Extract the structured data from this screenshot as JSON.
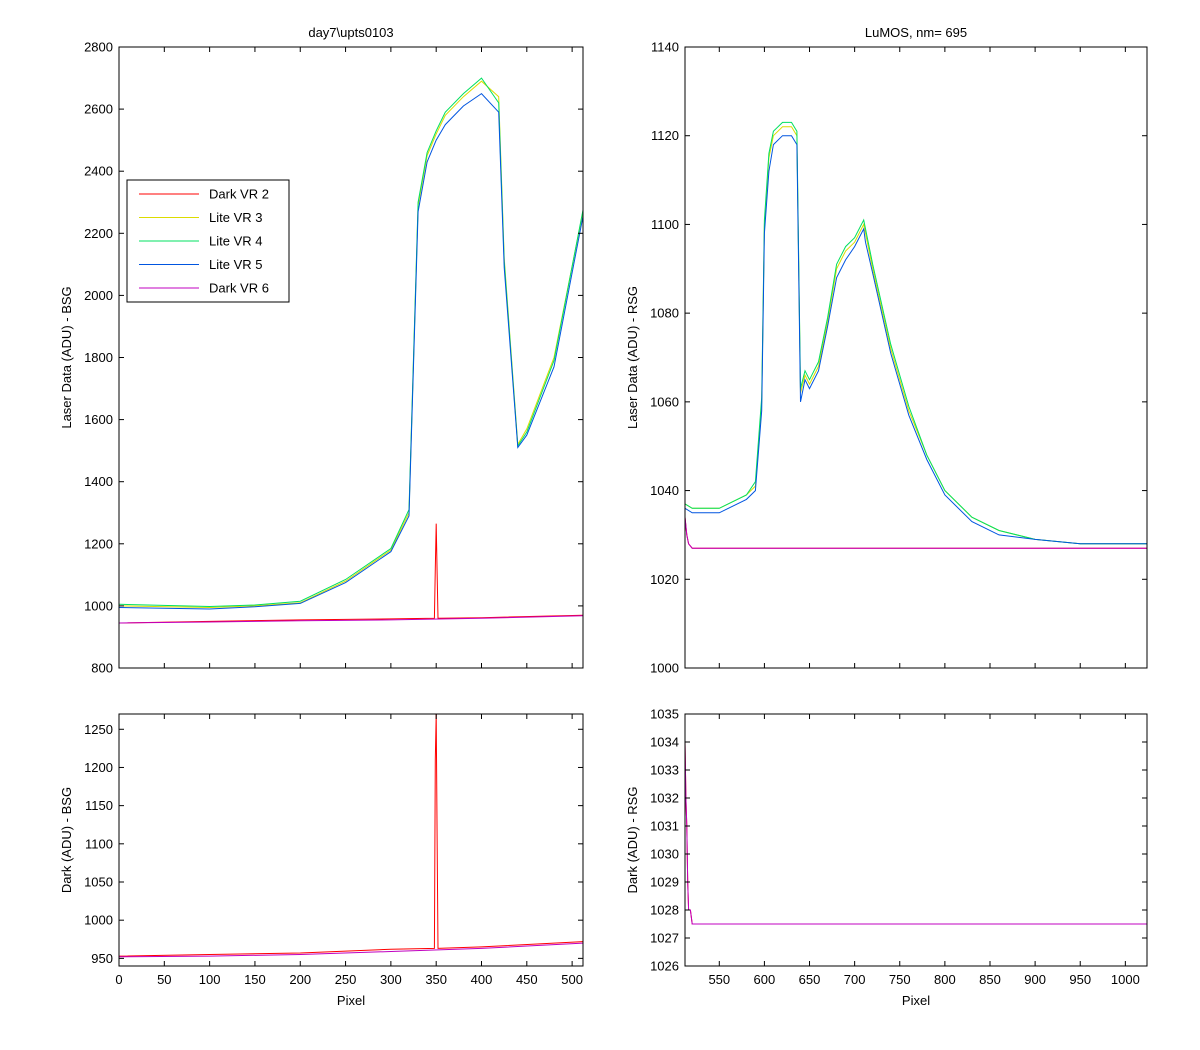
{
  "chart_data": [
    {
      "id": "bsg_laser",
      "type": "line",
      "title": "day7\\upts0103",
      "xlabel": "",
      "ylabel": "Laser Data (ADU) - BSG",
      "xlim": [
        0,
        512
      ],
      "ylim": [
        800,
        2800
      ],
      "xticks": [
        0,
        50,
        100,
        150,
        200,
        250,
        300,
        350,
        400,
        450,
        500
      ],
      "xtick_labels_shown": false,
      "yticks": [
        800,
        1000,
        1200,
        1400,
        1600,
        1800,
        2000,
        2200,
        2400,
        2600,
        2800
      ],
      "grid": false,
      "legend": "upper-left",
      "series": [
        {
          "name": "Dark VR 2",
          "color": "#ff0000",
          "x": [
            0,
            100,
            200,
            300,
            348,
            349,
            350,
            351,
            352,
            400,
            512
          ],
          "y": [
            945,
            950,
            955,
            958,
            960,
            1120,
            1265,
            1110,
            960,
            962,
            970
          ]
        },
        {
          "name": "Lite VR 3",
          "color": "#dcdc00",
          "x": [
            0,
            100,
            150,
            200,
            250,
            300,
            320,
            330,
            340,
            350,
            360,
            380,
            400,
            419,
            425,
            440,
            450,
            480,
            512
          ],
          "y": [
            1000,
            995,
            1000,
            1010,
            1080,
            1180,
            1300,
            2290,
            2450,
            2520,
            2580,
            2640,
            2690,
            2640,
            2120,
            1520,
            1570,
            1800,
            2270
          ]
        },
        {
          "name": "Lite VR 4",
          "color": "#00e060",
          "x": [
            0,
            100,
            150,
            200,
            250,
            300,
            320,
            330,
            340,
            350,
            360,
            380,
            400,
            419,
            425,
            440,
            450,
            480,
            512
          ],
          "y": [
            1005,
            998,
            1003,
            1015,
            1085,
            1185,
            1310,
            2300,
            2460,
            2530,
            2590,
            2650,
            2700,
            2620,
            2110,
            1515,
            1560,
            1790,
            2275
          ]
        },
        {
          "name": "Lite VR 5",
          "color": "#0055e0",
          "x": [
            0,
            100,
            150,
            200,
            250,
            300,
            320,
            330,
            340,
            350,
            360,
            380,
            400,
            419,
            425,
            440,
            450,
            480,
            512
          ],
          "y": [
            995,
            990,
            997,
            1008,
            1075,
            1175,
            1290,
            2270,
            2430,
            2500,
            2550,
            2610,
            2650,
            2590,
            2090,
            1510,
            1550,
            1770,
            2255
          ]
        },
        {
          "name": "Dark VR 6",
          "color": "#c000c0",
          "x": [
            0,
            100,
            200,
            300,
            400,
            512
          ],
          "y": [
            945,
            948,
            952,
            955,
            960,
            968
          ]
        }
      ]
    },
    {
      "id": "rsg_laser",
      "type": "line",
      "title": "LuMOS, nm= 695",
      "xlabel": "",
      "ylabel": "Laser Data (ADU) - RSG",
      "xlim": [
        512,
        1024
      ],
      "ylim": [
        1000,
        1140
      ],
      "xticks": [
        550,
        600,
        650,
        700,
        750,
        800,
        850,
        900,
        950,
        1000
      ],
      "xtick_labels_shown": false,
      "yticks": [
        1000,
        1020,
        1040,
        1060,
        1080,
        1100,
        1120,
        1140
      ],
      "grid": false,
      "series": [
        {
          "name": "Lite VR 3",
          "color": "#dcdc00",
          "x": [
            512,
            520,
            550,
            580,
            590,
            597,
            600,
            605,
            610,
            620,
            630,
            636,
            640,
            645,
            650,
            660,
            670,
            680,
            690,
            700,
            710,
            712,
            720,
            740,
            760,
            780,
            800,
            830,
            860,
            900,
            950,
            1000,
            1024
          ],
          "y": [
            1037,
            1036,
            1036,
            1039,
            1041,
            1060,
            1100,
            1115,
            1120,
            1122,
            1122,
            1120,
            1062,
            1066,
            1064,
            1068,
            1078,
            1090,
            1094,
            1096,
            1100,
            1098,
            1090,
            1072,
            1058,
            1048,
            1040,
            1034,
            1031,
            1029,
            1028,
            1028,
            1028
          ]
        },
        {
          "name": "Lite VR 4",
          "color": "#00e060",
          "x": [
            512,
            520,
            550,
            580,
            590,
            597,
            600,
            605,
            610,
            620,
            630,
            636,
            640,
            645,
            650,
            660,
            670,
            680,
            690,
            700,
            710,
            712,
            720,
            740,
            760,
            780,
            800,
            830,
            860,
            900,
            950,
            1000,
            1024
          ],
          "y": [
            1037,
            1036,
            1036,
            1039,
            1042,
            1061,
            1101,
            1116,
            1121,
            1123,
            1123,
            1121,
            1063,
            1067,
            1065,
            1069,
            1079,
            1091,
            1095,
            1097,
            1101,
            1099,
            1091,
            1073,
            1059,
            1048,
            1040,
            1034,
            1031,
            1029,
            1028,
            1028,
            1028
          ]
        },
        {
          "name": "Lite VR 5",
          "color": "#0055e0",
          "x": [
            512,
            520,
            550,
            580,
            590,
            597,
            600,
            605,
            610,
            620,
            630,
            636,
            640,
            645,
            650,
            660,
            670,
            680,
            690,
            700,
            710,
            712,
            720,
            740,
            760,
            780,
            800,
            830,
            860,
            900,
            950,
            1000,
            1024
          ],
          "y": [
            1036,
            1035,
            1035,
            1038,
            1040,
            1058,
            1098,
            1112,
            1118,
            1120,
            1120,
            1118,
            1060,
            1065,
            1063,
            1067,
            1077,
            1088,
            1092,
            1095,
            1099,
            1096,
            1089,
            1071,
            1057,
            1047,
            1039,
            1033,
            1030,
            1029,
            1028,
            1028,
            1028
          ]
        },
        {
          "name": "Dark VR 2",
          "color": "#ff0000",
          "x": [
            512,
            514,
            516,
            520,
            1024
          ],
          "y": [
            1034,
            1030,
            1028,
            1027,
            1027
          ]
        },
        {
          "name": "Dark VR 6",
          "color": "#c000c0",
          "x": [
            512,
            514,
            516,
            520,
            1024
          ],
          "y": [
            1034,
            1030,
            1028,
            1027,
            1027
          ]
        }
      ]
    },
    {
      "id": "bsg_dark",
      "type": "line",
      "title": "",
      "xlabel": "Pixel",
      "ylabel": "Dark (ADU) - BSG",
      "xlim": [
        0,
        512
      ],
      "ylim": [
        940,
        1270
      ],
      "xticks": [
        0,
        50,
        100,
        150,
        200,
        250,
        300,
        350,
        400,
        450,
        500
      ],
      "yticks": [
        950,
        1000,
        1050,
        1100,
        1150,
        1200,
        1250
      ],
      "grid": false,
      "series": [
        {
          "name": "Dark VR 2",
          "color": "#ff0000",
          "x": [
            0,
            100,
            200,
            300,
            348,
            349,
            350,
            351,
            352,
            400,
            512
          ],
          "y": [
            953,
            955,
            957,
            962,
            963,
            1210,
            1270,
            1110,
            963,
            965,
            972
          ]
        },
        {
          "name": "Dark VR 6",
          "color": "#c000c0",
          "x": [
            0,
            100,
            200,
            300,
            400,
            512
          ],
          "y": [
            952,
            953,
            955,
            959,
            963,
            970
          ]
        }
      ]
    },
    {
      "id": "rsg_dark",
      "type": "line",
      "title": "",
      "xlabel": "Pixel",
      "ylabel": "Dark (ADU) - RSG",
      "xlim": [
        512,
        1024
      ],
      "ylim": [
        1026,
        1035
      ],
      "xticks": [
        550,
        600,
        650,
        700,
        750,
        800,
        850,
        900,
        950,
        1000
      ],
      "yticks": [
        1026,
        1027,
        1028,
        1029,
        1030,
        1031,
        1032,
        1033,
        1034,
        1035
      ],
      "grid": false,
      "series": [
        {
          "name": "Dark VR 2",
          "color": "#ff0000",
          "x": [
            512,
            513,
            514,
            515,
            516,
            518,
            520,
            1024
          ],
          "y": [
            1034,
            1032,
            1031,
            1029,
            1028,
            1028,
            1027.5,
            1027.5
          ]
        },
        {
          "name": "Dark VR 6",
          "color": "#c000c0",
          "x": [
            512,
            513,
            514,
            515,
            516,
            518,
            520,
            1024
          ],
          "y": [
            1034,
            1032,
            1031,
            1029,
            1028,
            1028,
            1027.5,
            1027.5
          ]
        }
      ]
    }
  ]
}
